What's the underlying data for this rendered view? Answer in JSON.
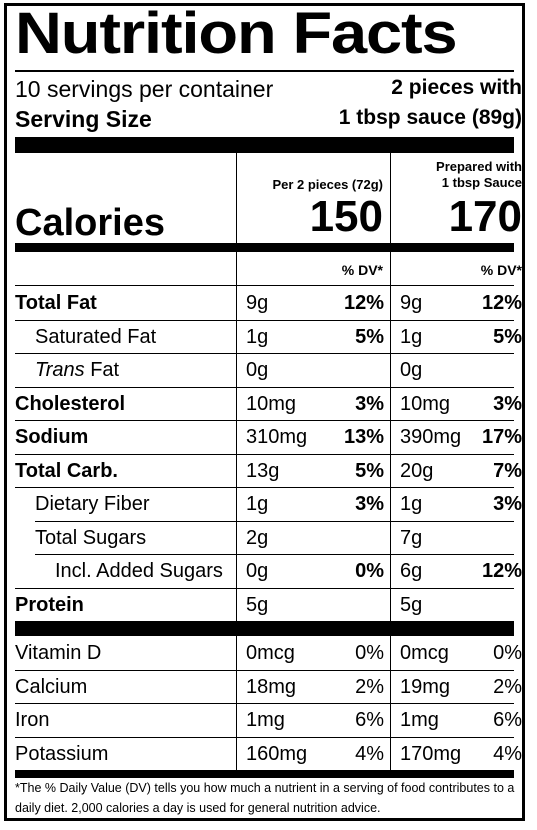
{
  "title": "Nutrition Facts",
  "servings": "10 servings per container",
  "serving_size_label": "Serving Size",
  "serving_size_line1": "2 pieces with",
  "serving_size_line2": "1 tbsp sauce (89g)",
  "col1_header": "Per 2 pieces (72g)",
  "col2_header_line1": "Prepared with",
  "col2_header_line2": "1 tbsp Sauce",
  "calories_label": "Calories",
  "calories_col1": "150",
  "calories_col2": "170",
  "dv_header": "% DV*",
  "nutrients": [
    {
      "name": "Total Fat",
      "c1": "9g",
      "d1": "12%",
      "c2": "9g",
      "d2": "12%"
    },
    {
      "name": "Saturated Fat",
      "c1": "1g",
      "d1": "5%",
      "c2": "1g",
      "d2": "5%"
    },
    {
      "name_italic": "Trans",
      "name_rest": " Fat",
      "c1": "0g",
      "d1": "",
      "c2": "0g",
      "d2": ""
    },
    {
      "name": "Cholesterol",
      "c1": "10mg",
      "d1": "3%",
      "c2": "10mg",
      "d2": "3%"
    },
    {
      "name": "Sodium",
      "c1": "310mg",
      "d1": "13%",
      "c2": "390mg",
      "d2": "17%"
    },
    {
      "name": "Total Carb.",
      "c1": "13g",
      "d1": "5%",
      "c2": "20g",
      "d2": "7%"
    },
    {
      "name": "Dietary Fiber",
      "c1": "1g",
      "d1": "3%",
      "c2": "1g",
      "d2": "3%"
    },
    {
      "name": "Total Sugars",
      "c1": "2g",
      "d1": "",
      "c2": "7g",
      "d2": ""
    },
    {
      "name": "Incl. Added Sugars",
      "c1": "0g",
      "d1": "0%",
      "c2": "6g",
      "d2": "12%"
    },
    {
      "name": "Protein",
      "c1": "5g",
      "d1": "",
      "c2": "5g",
      "d2": ""
    }
  ],
  "vitamins": [
    {
      "name": "Vitamin D",
      "c1": "0mcg",
      "d1": "0%",
      "c2": "0mcg",
      "d2": "0%"
    },
    {
      "name": "Calcium",
      "c1": "18mg",
      "d1": "2%",
      "c2": "19mg",
      "d2": "2%"
    },
    {
      "name": "Iron",
      "c1": "1mg",
      "d1": "6%",
      "c2": "1mg",
      "d2": "6%"
    },
    {
      "name": "Potassium",
      "c1": "160mg",
      "d1": "4%",
      "c2": "170mg",
      "d2": "4%"
    }
  ],
  "footnote": "*The % Daily Value (DV) tells you how much a nutrient in a serving of food contributes to a daily diet. 2,000 calories a day is used for general nutrition advice."
}
